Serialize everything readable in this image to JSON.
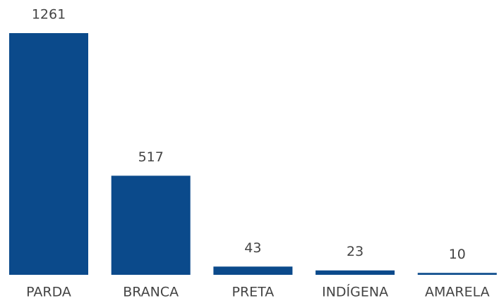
{
  "chart_data": {
    "type": "bar",
    "categories": [
      "PARDA",
      "BRANCA",
      "PRETA",
      "INDÍGENA",
      "AMARELA"
    ],
    "values": [
      1261,
      517,
      43,
      23,
      10
    ],
    "color": "#0b4a8b"
  }
}
